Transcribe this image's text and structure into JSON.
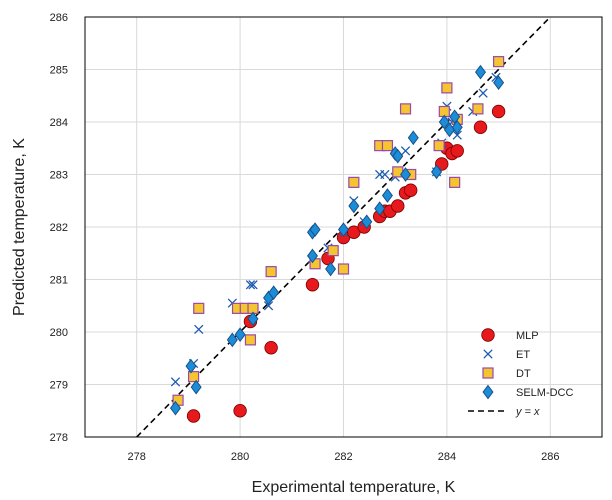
{
  "chart_data": {
    "type": "scatter",
    "xlabel": "Experimental temperature, K",
    "ylabel": "Predicted temperature, K",
    "xlim": [
      277,
      287
    ],
    "ylim": [
      278,
      286
    ],
    "x_ticks": [
      "278",
      "280",
      "282",
      "284",
      "286"
    ],
    "y_ticks": [
      "278",
      "279",
      "280",
      "281",
      "282",
      "283",
      "284",
      "285",
      "286"
    ],
    "grid": true,
    "legend_position": "bottom-right",
    "series": [
      {
        "name": "MLP",
        "marker": "circle",
        "color": "#e8191d",
        "points": [
          [
            279.1,
            278.4
          ],
          [
            280.0,
            278.5
          ],
          [
            280.2,
            280.2
          ],
          [
            280.6,
            279.7
          ],
          [
            281.4,
            280.9
          ],
          [
            281.7,
            281.4
          ],
          [
            282.0,
            281.8
          ],
          [
            282.2,
            281.9
          ],
          [
            282.4,
            282.0
          ],
          [
            282.7,
            282.2
          ],
          [
            282.8,
            282.3
          ],
          [
            282.9,
            282.3
          ],
          [
            283.05,
            282.4
          ],
          [
            283.2,
            282.65
          ],
          [
            283.3,
            282.7
          ],
          [
            283.9,
            283.2
          ],
          [
            284.0,
            283.5
          ],
          [
            284.1,
            283.4
          ],
          [
            284.2,
            283.45
          ],
          [
            284.65,
            283.9
          ],
          [
            285.0,
            284.2
          ]
        ]
      },
      {
        "name": "ET",
        "marker": "x",
        "color": "#1c5bb0",
        "points": [
          [
            278.75,
            279.05
          ],
          [
            279.1,
            279.4
          ],
          [
            279.2,
            280.05
          ],
          [
            279.85,
            280.55
          ],
          [
            280.2,
            280.9
          ],
          [
            280.25,
            280.9
          ],
          [
            280.55,
            280.5
          ],
          [
            281.4,
            281.4
          ],
          [
            281.7,
            281.6
          ],
          [
            282.0,
            281.9
          ],
          [
            282.2,
            282.5
          ],
          [
            282.4,
            282.1
          ],
          [
            282.7,
            283.0
          ],
          [
            282.8,
            283.0
          ],
          [
            283.0,
            282.95
          ],
          [
            283.2,
            283.45
          ],
          [
            283.8,
            283.05
          ],
          [
            283.9,
            283.6
          ],
          [
            284.0,
            284.3
          ],
          [
            284.1,
            284.0
          ],
          [
            284.2,
            283.75
          ],
          [
            284.5,
            284.2
          ],
          [
            284.7,
            284.55
          ],
          [
            284.95,
            284.85
          ]
        ]
      },
      {
        "name": "DT",
        "marker": "square",
        "color": "#f5c431",
        "stroke": "#9a4aa8",
        "points": [
          [
            278.8,
            278.7
          ],
          [
            279.1,
            279.15
          ],
          [
            279.2,
            280.45
          ],
          [
            279.95,
            280.45
          ],
          [
            280.1,
            280.45
          ],
          [
            280.2,
            279.85
          ],
          [
            280.25,
            280.45
          ],
          [
            280.6,
            281.15
          ],
          [
            281.45,
            281.3
          ],
          [
            281.8,
            281.55
          ],
          [
            282.0,
            281.2
          ],
          [
            282.2,
            282.85
          ],
          [
            282.7,
            283.55
          ],
          [
            282.85,
            283.55
          ],
          [
            283.05,
            283.05
          ],
          [
            283.2,
            284.25
          ],
          [
            283.3,
            283.0
          ],
          [
            283.85,
            283.55
          ],
          [
            283.95,
            284.2
          ],
          [
            284.0,
            284.65
          ],
          [
            284.15,
            282.85
          ],
          [
            284.2,
            284.05
          ],
          [
            284.6,
            284.25
          ],
          [
            285.0,
            285.15
          ]
        ]
      },
      {
        "name": "SELM-DCC",
        "marker": "diamond",
        "color": "#1a8dd6",
        "stroke": "#1a4f8a",
        "points": [
          [
            278.75,
            278.55
          ],
          [
            279.05,
            279.35
          ],
          [
            279.15,
            278.95
          ],
          [
            279.85,
            279.85
          ],
          [
            280.0,
            279.95
          ],
          [
            280.25,
            280.25
          ],
          [
            280.55,
            280.65
          ],
          [
            280.65,
            280.75
          ],
          [
            281.4,
            281.9
          ],
          [
            281.45,
            281.95
          ],
          [
            281.4,
            281.45
          ],
          [
            281.75,
            281.2
          ],
          [
            282.0,
            281.95
          ],
          [
            282.2,
            282.4
          ],
          [
            282.45,
            282.1
          ],
          [
            282.7,
            282.35
          ],
          [
            282.85,
            282.6
          ],
          [
            283.0,
            283.4
          ],
          [
            283.05,
            283.35
          ],
          [
            283.2,
            283.0
          ],
          [
            283.35,
            283.7
          ],
          [
            283.8,
            283.05
          ],
          [
            283.95,
            284.0
          ],
          [
            284.05,
            283.85
          ],
          [
            284.15,
            284.1
          ],
          [
            284.2,
            283.9
          ],
          [
            284.65,
            284.95
          ],
          [
            285.0,
            284.75
          ]
        ]
      }
    ],
    "reference_line": {
      "label": "y = x",
      "style": "dashed",
      "color": "#000000"
    }
  }
}
